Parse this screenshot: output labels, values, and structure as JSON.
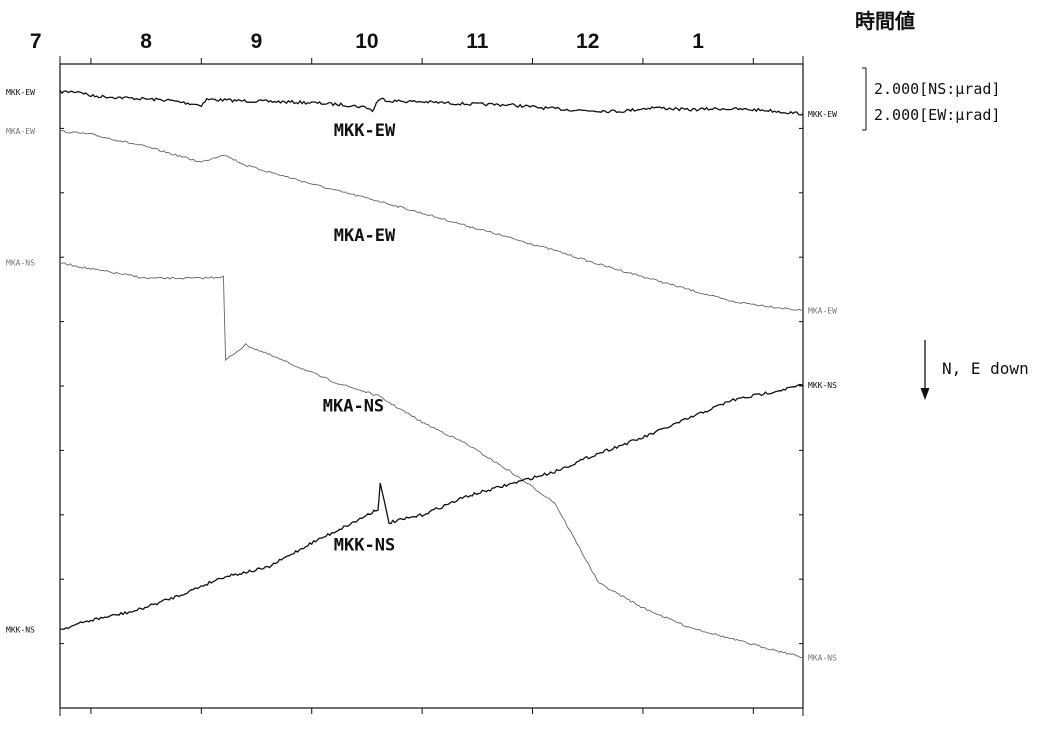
{
  "chart_data": {
    "type": "line",
    "title": "時間値",
    "x_unit": "hour",
    "x_range": [
      6.72,
      13.45
    ],
    "x_ticks": [
      "7",
      "8",
      "9",
      "10",
      "11",
      "12",
      "1"
    ],
    "scale": {
      "ns": "2.000[NS:μrad]",
      "ew": "2.000[EW:μrad]"
    },
    "direction_note": "N, E down",
    "y_axis": {
      "inverted": true,
      "note": "N, E down"
    },
    "series": [
      {
        "name": "MKK-EW",
        "left_tag": "MKK-EW",
        "right_tag": "MKK-EW",
        "style": "dark",
        "x": [
          6.72,
          6.9,
          7.0,
          7.3,
          7.7,
          8.0,
          8.05,
          8.3,
          8.7,
          9.0,
          9.3,
          9.5,
          9.55,
          9.6,
          9.65,
          9.7,
          10.0,
          10.4,
          10.8,
          11.1,
          11.4,
          11.8,
          12.1,
          12.4,
          12.7,
          13.1,
          13.45
        ],
        "y": [
          1.97,
          1.98,
          1.84,
          1.78,
          1.7,
          1.54,
          1.73,
          1.69,
          1.65,
          1.62,
          1.55,
          1.47,
          1.35,
          1.7,
          1.74,
          1.68,
          1.65,
          1.58,
          1.55,
          1.45,
          1.38,
          1.34,
          1.47,
          1.39,
          1.43,
          1.38,
          1.26
        ]
      },
      {
        "name": "MKA-EW",
        "left_tag": "MKA-EW",
        "right_tag": "MKA-EW",
        "style": "light",
        "x": [
          6.72,
          7.0,
          7.5,
          8.0,
          8.2,
          8.4,
          8.8,
          9.2,
          9.6,
          10.0,
          10.4,
          10.8,
          11.2,
          11.6,
          12.0,
          12.4,
          12.8,
          13.45
        ],
        "y": [
          0.7,
          0.6,
          0.2,
          -0.3,
          -0.05,
          -0.4,
          -0.8,
          -1.2,
          -1.55,
          -1.95,
          -2.35,
          -2.75,
          -3.15,
          -3.6,
          -4.0,
          -4.4,
          -4.8,
          -5.1
        ]
      },
      {
        "name": "MKA-NS",
        "left_tag": "MKA-NS",
        "right_tag": "MKA-NS",
        "style": "light",
        "x": [
          6.72,
          7.0,
          7.5,
          8.0,
          8.2,
          8.22,
          8.4,
          8.8,
          9.2,
          9.6,
          10.0,
          10.4,
          10.8,
          11.2,
          11.6,
          12.0,
          12.4,
          12.8,
          13.45
        ],
        "y": [
          -3.55,
          -3.75,
          -4.05,
          -4.05,
          -4.0,
          -6.7,
          -6.2,
          -6.8,
          -7.4,
          -7.85,
          -8.7,
          -9.4,
          -10.3,
          -11.3,
          -13.9,
          -14.7,
          -15.3,
          -15.7,
          -16.3
        ]
      },
      {
        "name": "MKK-NS",
        "left_tag": "MKK-NS",
        "right_tag": "MKK-NS",
        "style": "dark",
        "x": [
          6.72,
          7.0,
          7.4,
          7.8,
          8.2,
          8.6,
          9.0,
          9.4,
          9.6,
          9.62,
          9.7,
          10.0,
          10.4,
          10.8,
          11.2,
          11.6,
          12.0,
          12.4,
          12.8,
          13.2,
          13.45
        ],
        "y": [
          -15.4,
          -15.1,
          -14.8,
          -14.3,
          -13.7,
          -13.4,
          -12.6,
          -11.9,
          -11.5,
          -10.7,
          -11.95,
          -11.7,
          -11.1,
          -10.7,
          -10.3,
          -9.7,
          -9.2,
          -8.6,
          -8.0,
          -7.7,
          -7.5
        ]
      }
    ]
  }
}
